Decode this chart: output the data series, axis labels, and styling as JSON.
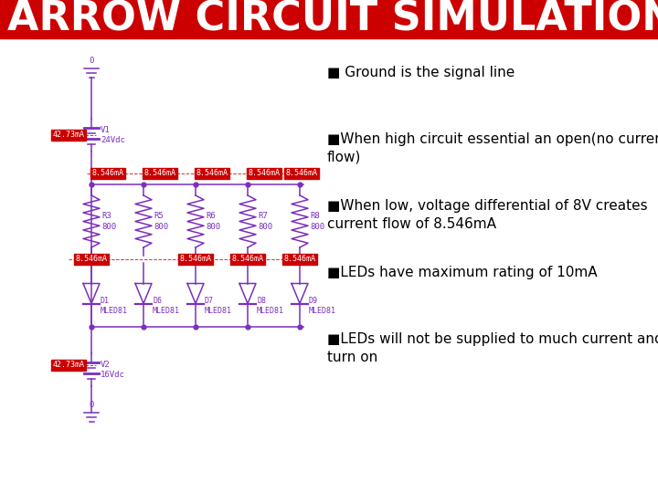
{
  "title": "ARROW CIRCUIT SIMULATION",
  "title_bg": "#cc0000",
  "title_color": "#ffffff",
  "title_fontsize": 32,
  "bg_color": "#ffffff",
  "bullet_color": "#000000",
  "bullet_fontsize": 11,
  "bullets": [
    "■ Ground is the signal line",
    "■When high circuit essential an open(no current\nflow)",
    "■When low, voltage differential of 8V creates\ncurrent flow of 8.546mA",
    "■LEDs have maximum rating of 10mA",
    "■LEDs will not be supplied to much current and will\nturn on"
  ],
  "circuit_color": "#7b2fbe",
  "current_label_bg": "#cc0000",
  "current_label_color": "#ffffff",
  "current_label_fontsize": 6,
  "component_fontsize": 6.5,
  "resistor_labels": [
    "R3\n800",
    "R5\n800",
    "R6\n800",
    "R7\n800",
    "R8\n800"
  ],
  "led_labels": [
    "D1\nMLED81",
    "D6\nMLED81",
    "D7\nMLED81",
    "D8\nMLED81",
    "D9\nMLED81"
  ],
  "v1_label": "V1\n24Vdc",
  "v2_label": "V2\n16Vdc",
  "current_top": "8.546mA",
  "current_side_top": "42.73mA",
  "current_side_bot": "42.73mA",
  "current_mid_left": "8.546mA",
  "current_mid_mid1": "8.546mA",
  "current_mid_mid2": "8.546mA",
  "current_mid_right": "8.546mA",
  "gnd_label": "0"
}
